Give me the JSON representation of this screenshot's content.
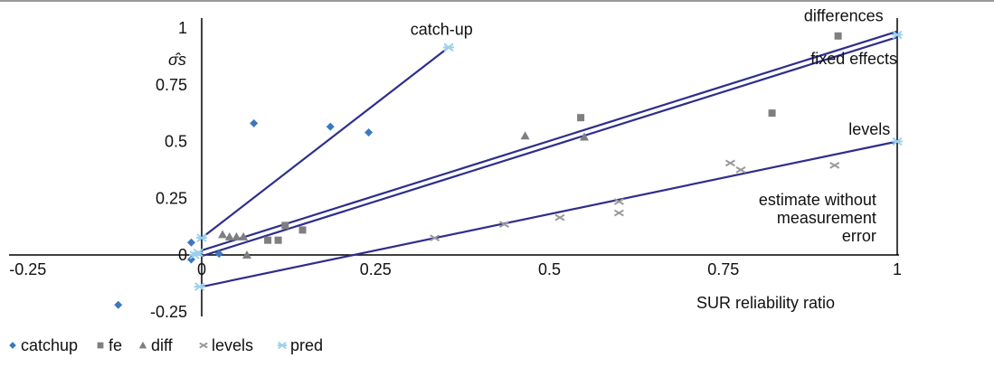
{
  "chart_data": {
    "type": "scatter",
    "title": "",
    "xlabel": "SUR reliability ratio",
    "ylabel": "σ̂s",
    "xlim": [
      -0.27,
      1.0
    ],
    "ylim": [
      -0.27,
      1.02
    ],
    "grid": false,
    "legend_position": "bottom-left",
    "x_ticks": [
      {
        "value": -0.25,
        "label": "-0.25"
      },
      {
        "value": 0,
        "label": "0"
      },
      {
        "value": 0.25,
        "label": "0.25"
      },
      {
        "value": 0.5,
        "label": "0.5"
      },
      {
        "value": 0.75,
        "label": "0.75"
      },
      {
        "value": 1,
        "label": "1"
      }
    ],
    "y_ticks": [
      {
        "value": 1,
        "label": "1"
      },
      {
        "value": 0.75,
        "label": "0.75"
      },
      {
        "value": 0.5,
        "label": "0.5"
      },
      {
        "value": 0.25,
        "label": "0.25"
      },
      {
        "value": 0,
        "label": "0"
      },
      {
        "value": -0.25,
        "label": "-0.25"
      }
    ],
    "series": [
      {
        "name": "catchup",
        "marker": "diamond",
        "color": "#3a78c4",
        "points": [
          [
            -0.12,
            -0.22
          ],
          [
            -0.015,
            0.055
          ],
          [
            -0.015,
            -0.02
          ],
          [
            0.025,
            0.005
          ],
          [
            0.075,
            0.58
          ],
          [
            0.185,
            0.565
          ],
          [
            0.24,
            0.54
          ]
        ]
      },
      {
        "name": "fe",
        "marker": "square",
        "color": "#7f7f7f",
        "points": [
          [
            0.095,
            0.065
          ],
          [
            0.11,
            0.065
          ],
          [
            0.12,
            0.13
          ],
          [
            0.145,
            0.11
          ],
          [
            0.545,
            0.605
          ],
          [
            0.82,
            0.625
          ],
          [
            0.915,
            0.965
          ]
        ]
      },
      {
        "name": "diff",
        "marker": "triangle",
        "color": "#7f7f7f",
        "points": [
          [
            0.03,
            0.09
          ],
          [
            0.04,
            0.08
          ],
          [
            0.05,
            0.08
          ],
          [
            0.06,
            0.08
          ],
          [
            0.065,
            0.0
          ],
          [
            0.465,
            0.525
          ],
          [
            0.55,
            0.52
          ]
        ]
      },
      {
        "name": "levels",
        "marker": "x",
        "color": "#9a9a9a",
        "points": [
          [
            0.335,
            0.075
          ],
          [
            0.435,
            0.135
          ],
          [
            0.515,
            0.165
          ],
          [
            0.6,
            0.185
          ],
          [
            0.6,
            0.235
          ],
          [
            0.76,
            0.405
          ],
          [
            0.775,
            0.375
          ],
          [
            0.91,
            0.395
          ]
        ]
      },
      {
        "name": "pred",
        "marker": "asterisk",
        "color": "#9bd1ee",
        "points": [
          [
            -0.01,
            0.0
          ],
          [
            -0.005,
            0.01
          ],
          [
            0.0,
            0.075
          ],
          [
            -0.003,
            -0.14
          ],
          [
            0.355,
            0.915
          ],
          [
            1.0,
            0.97
          ],
          [
            1.0,
            0.5
          ]
        ]
      }
    ],
    "lines": [
      {
        "name": "catch-up",
        "from": [
          0,
          0.075
        ],
        "to": [
          0.355,
          0.915
        ],
        "color": "#2e2e8c"
      },
      {
        "name": "differences",
        "from": [
          0,
          0.02
        ],
        "to": [
          1,
          0.985
        ],
        "color": "#2e2e8c"
      },
      {
        "name": "fixed effects",
        "from": [
          0,
          -0.005
        ],
        "to": [
          1,
          0.96
        ],
        "color": "#2e2e8c"
      },
      {
        "name": "levels",
        "from": [
          0,
          -0.14
        ],
        "to": [
          1,
          0.5
        ],
        "color": "#2e2e8c"
      }
    ],
    "annotations": [
      {
        "text": "catch-up",
        "x": 0.3,
        "y": 0.97
      },
      {
        "text": "differences",
        "x": 0.98,
        "y": 1.03
      },
      {
        "text": "fixed effects",
        "x": 1.0,
        "y": 0.84
      },
      {
        "text": "levels",
        "x": 0.99,
        "y": 0.53
      },
      {
        "text": "estimate without",
        "x": 0.97,
        "y": 0.22
      },
      {
        "text": "measurement",
        "x": 0.97,
        "y": 0.14
      },
      {
        "text": "error",
        "x": 0.97,
        "y": 0.06
      }
    ],
    "legend": [
      {
        "label": "catchup",
        "marker": "diamond",
        "color": "#3a78c4"
      },
      {
        "label": "fe",
        "marker": "square",
        "color": "#7f7f7f"
      },
      {
        "label": "diff",
        "marker": "triangle",
        "color": "#7f7f7f"
      },
      {
        "label": "levels",
        "marker": "x",
        "color": "#9a9a9a"
      },
      {
        "label": "pred",
        "marker": "asterisk",
        "color": "#9bd1ee"
      }
    ]
  }
}
